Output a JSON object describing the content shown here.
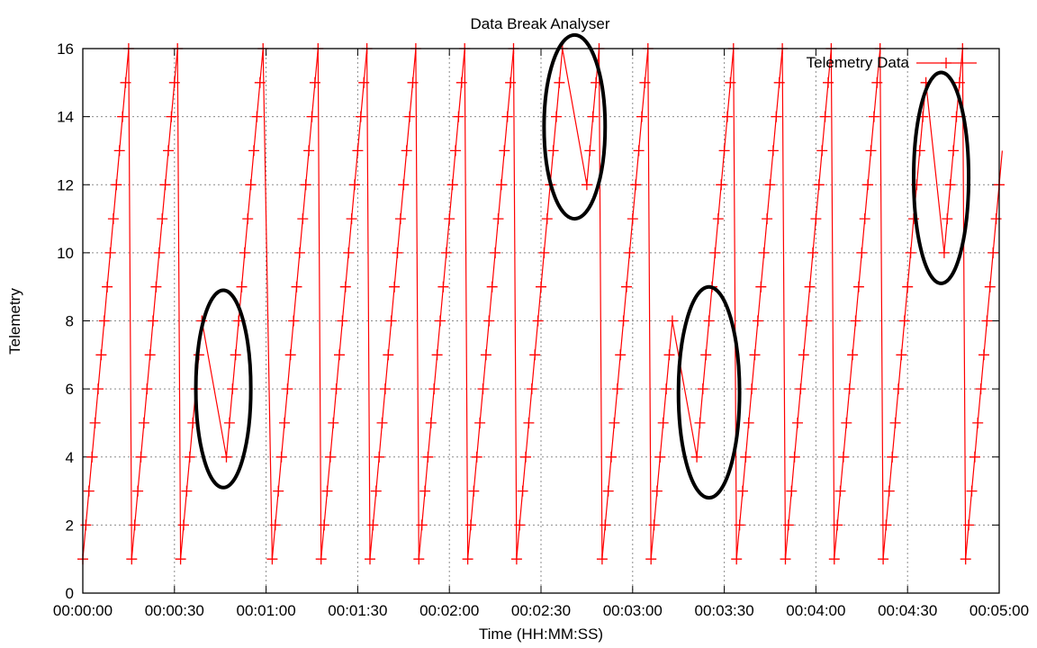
{
  "chart_data": {
    "type": "line",
    "title": "Data Break Analyser",
    "xlabel": "Time (HH:MM:SS)",
    "ylabel": "Telemetry",
    "xlim": [
      "00:00:00",
      "00:05:00"
    ],
    "ylim": [
      0,
      16
    ],
    "x_ticks": [
      "00:00:00",
      "00:00:30",
      "00:01:00",
      "00:01:30",
      "00:02:00",
      "00:02:30",
      "00:03:00",
      "00:03:30",
      "00:04:00",
      "00:04:30",
      "00:05:00"
    ],
    "y_ticks": [
      "0",
      "2",
      "4",
      "6",
      "8",
      "10",
      "12",
      "14",
      "16"
    ],
    "grid": true,
    "legend_position": "top-right",
    "series": [
      {
        "name": "Telemetry Data",
        "color": "#ff0000",
        "marker": "plus",
        "points": [
          [
            "00:00:00",
            1
          ],
          [
            "00:00:01",
            2
          ],
          [
            "00:00:02",
            3
          ],
          [
            "00:00:03",
            4
          ],
          [
            "00:00:04",
            5
          ],
          [
            "00:00:05",
            6
          ],
          [
            "00:00:06",
            7
          ],
          [
            "00:00:07",
            8
          ],
          [
            "00:00:08",
            9
          ],
          [
            "00:00:09",
            10
          ],
          [
            "00:00:10",
            11
          ],
          [
            "00:00:11",
            12
          ],
          [
            "00:00:12",
            13
          ],
          [
            "00:00:13",
            14
          ],
          [
            "00:00:14",
            15
          ],
          [
            "00:00:15",
            16
          ],
          [
            "00:00:16",
            1
          ],
          [
            "00:00:17",
            2
          ],
          [
            "00:00:18",
            3
          ],
          [
            "00:00:19",
            4
          ],
          [
            "00:00:20",
            5
          ],
          [
            "00:00:21",
            6
          ],
          [
            "00:00:22",
            7
          ],
          [
            "00:00:23",
            8
          ],
          [
            "00:00:24",
            9
          ],
          [
            "00:00:25",
            10
          ],
          [
            "00:00:26",
            11
          ],
          [
            "00:00:27",
            12
          ],
          [
            "00:00:28",
            13
          ],
          [
            "00:00:29",
            14
          ],
          [
            "00:00:30",
            15
          ],
          [
            "00:00:31",
            16
          ],
          [
            "00:00:32",
            1
          ],
          [
            "00:00:33",
            2
          ],
          [
            "00:00:34",
            3
          ],
          [
            "00:00:35",
            4
          ],
          [
            "00:00:36",
            5
          ],
          [
            "00:00:37",
            6
          ],
          [
            "00:00:38",
            7
          ],
          [
            "00:00:39",
            8
          ],
          [
            "00:00:47",
            4
          ],
          [
            "00:00:48",
            5
          ],
          [
            "00:00:49",
            6
          ],
          [
            "00:00:50",
            7
          ],
          [
            "00:00:51",
            8
          ],
          [
            "00:00:52",
            9
          ],
          [
            "00:00:53",
            10
          ],
          [
            "00:00:54",
            11
          ],
          [
            "00:00:55",
            12
          ],
          [
            "00:00:56",
            13
          ],
          [
            "00:00:57",
            14
          ],
          [
            "00:00:58",
            15
          ],
          [
            "00:00:59",
            16
          ],
          [
            "00:01:02",
            1
          ],
          [
            "00:01:03",
            2
          ],
          [
            "00:01:04",
            3
          ],
          [
            "00:01:05",
            4
          ],
          [
            "00:01:06",
            5
          ],
          [
            "00:01:07",
            6
          ],
          [
            "00:01:08",
            7
          ],
          [
            "00:01:09",
            8
          ],
          [
            "00:01:10",
            9
          ],
          [
            "00:01:11",
            10
          ],
          [
            "00:01:12",
            11
          ],
          [
            "00:01:13",
            12
          ],
          [
            "00:01:14",
            13
          ],
          [
            "00:01:15",
            14
          ],
          [
            "00:01:16",
            15
          ],
          [
            "00:01:17",
            16
          ],
          [
            "00:01:18",
            1
          ],
          [
            "00:01:19",
            2
          ],
          [
            "00:01:20",
            3
          ],
          [
            "00:01:21",
            4
          ],
          [
            "00:01:22",
            5
          ],
          [
            "00:01:23",
            6
          ],
          [
            "00:01:24",
            7
          ],
          [
            "00:01:25",
            8
          ],
          [
            "00:01:26",
            9
          ],
          [
            "00:01:27",
            10
          ],
          [
            "00:01:28",
            11
          ],
          [
            "00:01:29",
            12
          ],
          [
            "00:01:30",
            13
          ],
          [
            "00:01:31",
            14
          ],
          [
            "00:01:32",
            15
          ],
          [
            "00:01:33",
            16
          ],
          [
            "00:01:34",
            1
          ],
          [
            "00:01:35",
            2
          ],
          [
            "00:01:36",
            3
          ],
          [
            "00:01:37",
            4
          ],
          [
            "00:01:38",
            5
          ],
          [
            "00:01:39",
            6
          ],
          [
            "00:01:40",
            7
          ],
          [
            "00:01:41",
            8
          ],
          [
            "00:01:42",
            9
          ],
          [
            "00:01:43",
            10
          ],
          [
            "00:01:44",
            11
          ],
          [
            "00:01:45",
            12
          ],
          [
            "00:01:46",
            13
          ],
          [
            "00:01:47",
            14
          ],
          [
            "00:01:48",
            15
          ],
          [
            "00:01:49",
            16
          ],
          [
            "00:01:50",
            1
          ],
          [
            "00:01:51",
            2
          ],
          [
            "00:01:52",
            3
          ],
          [
            "00:01:53",
            4
          ],
          [
            "00:01:54",
            5
          ],
          [
            "00:01:55",
            6
          ],
          [
            "00:01:56",
            7
          ],
          [
            "00:01:57",
            8
          ],
          [
            "00:01:58",
            9
          ],
          [
            "00:01:59",
            10
          ],
          [
            "00:02:00",
            11
          ],
          [
            "00:02:01",
            12
          ],
          [
            "00:02:02",
            13
          ],
          [
            "00:02:03",
            14
          ],
          [
            "00:02:04",
            15
          ],
          [
            "00:02:05",
            16
          ],
          [
            "00:02:06",
            1
          ],
          [
            "00:02:07",
            2
          ],
          [
            "00:02:08",
            3
          ],
          [
            "00:02:09",
            4
          ],
          [
            "00:02:10",
            5
          ],
          [
            "00:02:11",
            6
          ],
          [
            "00:02:12",
            7
          ],
          [
            "00:02:13",
            8
          ],
          [
            "00:02:14",
            9
          ],
          [
            "00:02:15",
            10
          ],
          [
            "00:02:16",
            11
          ],
          [
            "00:02:17",
            12
          ],
          [
            "00:02:18",
            13
          ],
          [
            "00:02:19",
            14
          ],
          [
            "00:02:20",
            15
          ],
          [
            "00:02:21",
            16
          ],
          [
            "00:02:22",
            1
          ],
          [
            "00:02:23",
            2
          ],
          [
            "00:02:24",
            3
          ],
          [
            "00:02:25",
            4
          ],
          [
            "00:02:26",
            5
          ],
          [
            "00:02:27",
            6
          ],
          [
            "00:02:28",
            7
          ],
          [
            "00:02:29",
            8
          ],
          [
            "00:02:30",
            9
          ],
          [
            "00:02:31",
            10
          ],
          [
            "00:02:32",
            11
          ],
          [
            "00:02:33",
            12
          ],
          [
            "00:02:34",
            13
          ],
          [
            "00:02:35",
            14
          ],
          [
            "00:02:36",
            15
          ],
          [
            "00:02:37",
            16
          ],
          [
            "00:02:45",
            12
          ],
          [
            "00:02:46",
            13
          ],
          [
            "00:02:47",
            14
          ],
          [
            "00:02:48",
            15
          ],
          [
            "00:02:49",
            16
          ],
          [
            "00:02:50",
            1
          ],
          [
            "00:02:51",
            2
          ],
          [
            "00:02:52",
            3
          ],
          [
            "00:02:53",
            4
          ],
          [
            "00:02:54",
            5
          ],
          [
            "00:02:55",
            6
          ],
          [
            "00:02:56",
            7
          ],
          [
            "00:02:57",
            8
          ],
          [
            "00:02:58",
            9
          ],
          [
            "00:02:59",
            10
          ],
          [
            "00:03:00",
            11
          ],
          [
            "00:03:01",
            12
          ],
          [
            "00:03:02",
            13
          ],
          [
            "00:03:03",
            14
          ],
          [
            "00:03:04",
            15
          ],
          [
            "00:03:05",
            16
          ],
          [
            "00:03:06",
            1
          ],
          [
            "00:03:07",
            2
          ],
          [
            "00:03:08",
            3
          ],
          [
            "00:03:09",
            4
          ],
          [
            "00:03:10",
            5
          ],
          [
            "00:03:11",
            6
          ],
          [
            "00:03:12",
            7
          ],
          [
            "00:03:13",
            8
          ],
          [
            "00:03:21",
            4
          ],
          [
            "00:03:22",
            5
          ],
          [
            "00:03:23",
            6
          ],
          [
            "00:03:24",
            7
          ],
          [
            "00:03:25",
            8
          ],
          [
            "00:03:26",
            9
          ],
          [
            "00:03:27",
            10
          ],
          [
            "00:03:28",
            11
          ],
          [
            "00:03:29",
            12
          ],
          [
            "00:03:30",
            13
          ],
          [
            "00:03:31",
            14
          ],
          [
            "00:03:32",
            15
          ],
          [
            "00:03:33",
            16
          ],
          [
            "00:03:34",
            1
          ],
          [
            "00:03:35",
            2
          ],
          [
            "00:03:36",
            3
          ],
          [
            "00:03:37",
            4
          ],
          [
            "00:03:38",
            5
          ],
          [
            "00:03:39",
            6
          ],
          [
            "00:03:40",
            7
          ],
          [
            "00:03:41",
            8
          ],
          [
            "00:03:42",
            9
          ],
          [
            "00:03:43",
            10
          ],
          [
            "00:03:44",
            11
          ],
          [
            "00:03:45",
            12
          ],
          [
            "00:03:46",
            13
          ],
          [
            "00:03:47",
            14
          ],
          [
            "00:03:48",
            15
          ],
          [
            "00:03:49",
            16
          ],
          [
            "00:03:50",
            1
          ],
          [
            "00:03:51",
            2
          ],
          [
            "00:03:52",
            3
          ],
          [
            "00:03:53",
            4
          ],
          [
            "00:03:54",
            5
          ],
          [
            "00:03:55",
            6
          ],
          [
            "00:03:56",
            7
          ],
          [
            "00:03:57",
            8
          ],
          [
            "00:03:58",
            9
          ],
          [
            "00:03:59",
            10
          ],
          [
            "00:04:00",
            11
          ],
          [
            "00:04:01",
            12
          ],
          [
            "00:04:02",
            13
          ],
          [
            "00:04:03",
            14
          ],
          [
            "00:04:04",
            15
          ],
          [
            "00:04:05",
            16
          ],
          [
            "00:04:06",
            1
          ],
          [
            "00:04:07",
            2
          ],
          [
            "00:04:08",
            3
          ],
          [
            "00:04:09",
            4
          ],
          [
            "00:04:10",
            5
          ],
          [
            "00:04:11",
            6
          ],
          [
            "00:04:12",
            7
          ],
          [
            "00:04:13",
            8
          ],
          [
            "00:04:14",
            9
          ],
          [
            "00:04:15",
            10
          ],
          [
            "00:04:16",
            11
          ],
          [
            "00:04:17",
            12
          ],
          [
            "00:04:18",
            13
          ],
          [
            "00:04:19",
            14
          ],
          [
            "00:04:20",
            15
          ],
          [
            "00:04:21",
            16
          ],
          [
            "00:04:22",
            1
          ],
          [
            "00:04:23",
            2
          ],
          [
            "00:04:24",
            3
          ],
          [
            "00:04:25",
            4
          ],
          [
            "00:04:26",
            5
          ],
          [
            "00:04:27",
            6
          ],
          [
            "00:04:28",
            7
          ],
          [
            "00:04:29",
            8
          ],
          [
            "00:04:30",
            9
          ],
          [
            "00:04:31",
            10
          ],
          [
            "00:04:32",
            11
          ],
          [
            "00:04:33",
            12
          ],
          [
            "00:04:34",
            13
          ],
          [
            "00:04:35",
            14
          ],
          [
            "00:04:36",
            15
          ],
          [
            "00:04:42",
            10
          ],
          [
            "00:04:43",
            11
          ],
          [
            "00:04:44",
            12
          ],
          [
            "00:04:45",
            13
          ],
          [
            "00:04:46",
            14
          ],
          [
            "00:04:47",
            15
          ],
          [
            "00:04:48",
            16
          ],
          [
            "00:04:49",
            1
          ],
          [
            "00:04:50",
            2
          ],
          [
            "00:04:51",
            3
          ],
          [
            "00:04:52",
            4
          ],
          [
            "00:04:53",
            5
          ],
          [
            "00:04:54",
            6
          ],
          [
            "00:04:55",
            7
          ],
          [
            "00:04:56",
            8
          ],
          [
            "00:04:57",
            9
          ],
          [
            "00:04:58",
            10
          ],
          [
            "00:04:59",
            11
          ],
          [
            "00:05:00",
            12
          ],
          [
            "00:05:01",
            13
          ]
        ]
      }
    ],
    "annotations": [
      {
        "shape": "ellipse",
        "color": "#000000",
        "center": [
          "00:00:46",
          6
        ],
        "radius_x_seconds": 9,
        "radius_y": 2.9
      },
      {
        "shape": "ellipse",
        "color": "#000000",
        "center": [
          "00:02:41",
          13.7
        ],
        "radius_x_seconds": 10,
        "radius_y": 2.7
      },
      {
        "shape": "ellipse",
        "color": "#000000",
        "center": [
          "00:03:25",
          5.9
        ],
        "radius_x_seconds": 10,
        "radius_y": 3.1
      },
      {
        "shape": "ellipse",
        "color": "#000000",
        "center": [
          "00:04:41",
          12.2
        ],
        "radius_x_seconds": 9,
        "radius_y": 3.1
      }
    ]
  }
}
